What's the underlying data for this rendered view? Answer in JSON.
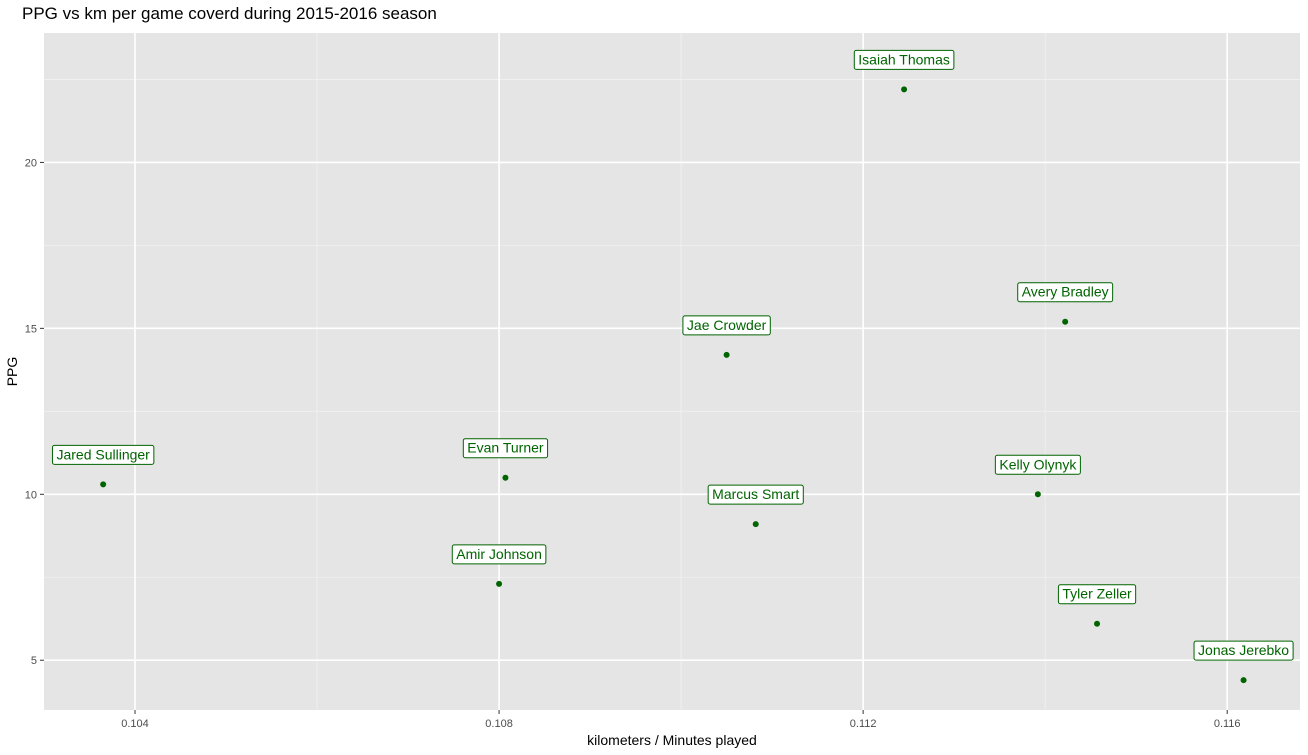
{
  "chart_data": {
    "type": "scatter",
    "title": "PPG vs  km per game coverd during 2015-2016 season",
    "xlabel": "kilometers / Minutes played",
    "ylabel": "PPG",
    "xlim": [
      0.103,
      0.1168
    ],
    "ylim": [
      3.5,
      23.9
    ],
    "xticks": [
      0.104,
      0.108,
      0.112,
      0.116
    ],
    "xtick_labels": [
      "0.104",
      "0.108",
      "0.112",
      "0.116"
    ],
    "yticks": [
      5,
      10,
      15,
      20
    ],
    "ytick_labels": [
      "5",
      "10",
      "15",
      "20"
    ],
    "grid": true,
    "legend": "none",
    "point_color": "#006400",
    "panel_color": "#e5e5e5",
    "points": [
      {
        "label": "Jared Sullinger",
        "x": 0.10365,
        "y": 10.3
      },
      {
        "label": "Evan Turner",
        "x": 0.10807,
        "y": 10.5
      },
      {
        "label": "Amir Johnson",
        "x": 0.108,
        "y": 7.3
      },
      {
        "label": "Jae Crowder",
        "x": 0.1105,
        "y": 14.2
      },
      {
        "label": "Marcus Smart",
        "x": 0.11082,
        "y": 9.1
      },
      {
        "label": "Isaiah Thomas",
        "x": 0.11245,
        "y": 22.2
      },
      {
        "label": "Avery Bradley",
        "x": 0.11422,
        "y": 15.2
      },
      {
        "label": "Kelly Olynyk",
        "x": 0.11392,
        "y": 10.0
      },
      {
        "label": "Tyler Zeller",
        "x": 0.11457,
        "y": 6.1
      },
      {
        "label": "Jonas Jerebko",
        "x": 0.11618,
        "y": 4.4
      }
    ]
  }
}
